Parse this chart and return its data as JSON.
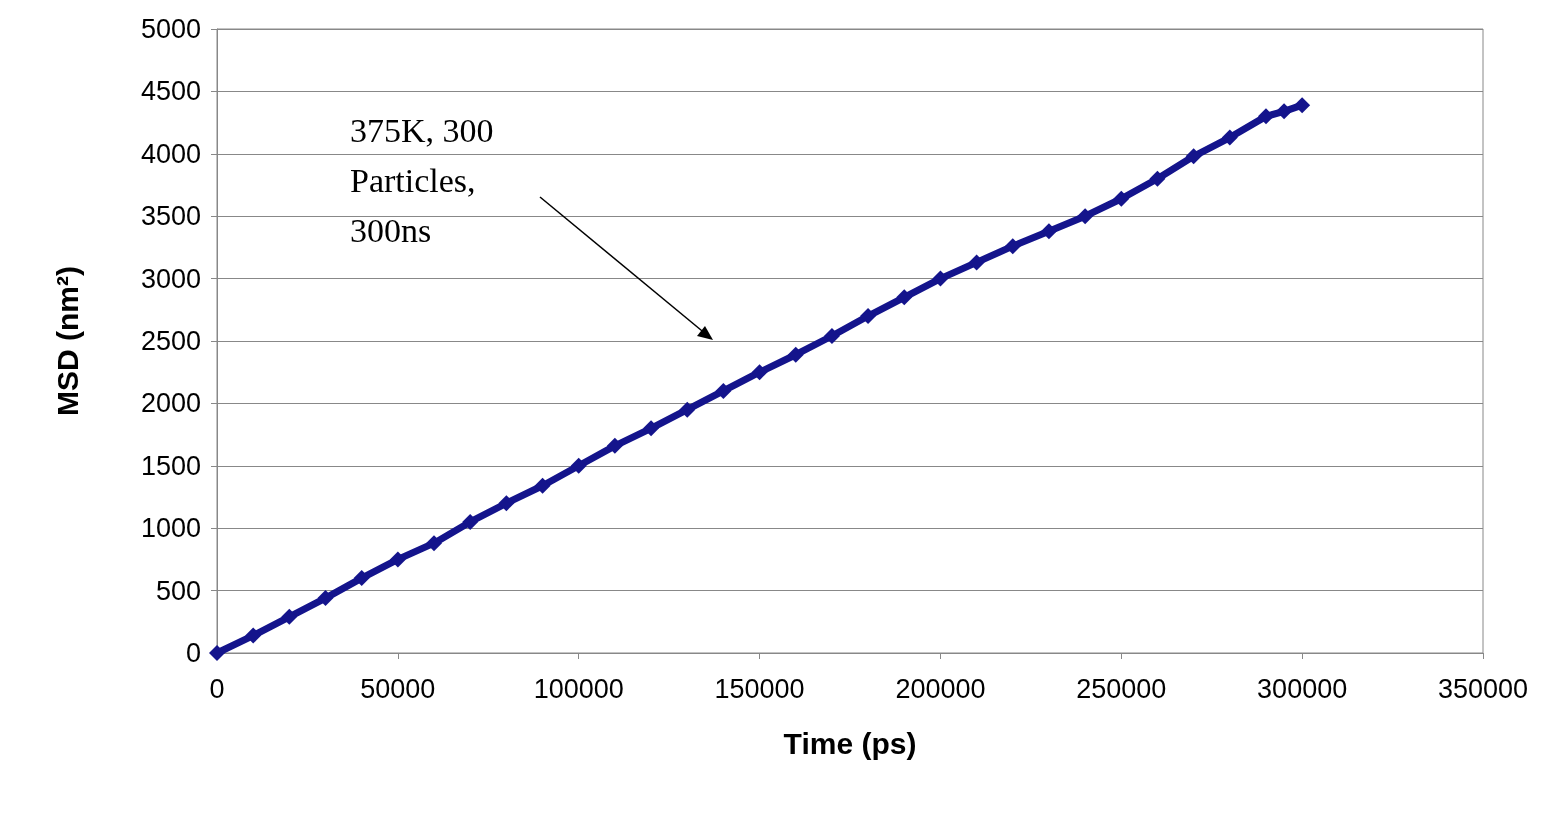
{
  "chart_data": {
    "type": "line",
    "xlabel": "Time (ps)",
    "ylabel": "MSD (nm²)",
    "x": [
      0,
      10000,
      20000,
      30000,
      40000,
      50000,
      60000,
      70000,
      80000,
      90000,
      100000,
      110000,
      120000,
      130000,
      140000,
      150000,
      160000,
      170000,
      180000,
      190000,
      200000,
      210000,
      220000,
      230000,
      240000,
      250000,
      260000,
      270000,
      280000,
      290000,
      295000,
      300000
    ],
    "series": [
      {
        "color": "#14148c",
        "values": [
          0,
          140,
          290,
          440,
          600,
          750,
          880,
          1050,
          1200,
          1340,
          1500,
          1660,
          1800,
          1950,
          2100,
          2250,
          2390,
          2540,
          2700,
          2850,
          3000,
          3130,
          3260,
          3380,
          3500,
          3640,
          3800,
          3980,
          4130,
          4300,
          4340,
          4390
        ]
      }
    ],
    "xlim": [
      0,
      350000
    ],
    "xticks": [
      0,
      50000,
      100000,
      150000,
      200000,
      250000,
      300000,
      350000
    ],
    "ylim": [
      0,
      5000
    ],
    "yticks": [
      0,
      500,
      1000,
      1500,
      2000,
      2500,
      3000,
      3500,
      4000,
      4500,
      5000
    ],
    "grid": "y",
    "marker": "diamond",
    "line_style": "solid",
    "annotations": [
      "375K, 300\nParticles,\n300ns"
    ]
  }
}
